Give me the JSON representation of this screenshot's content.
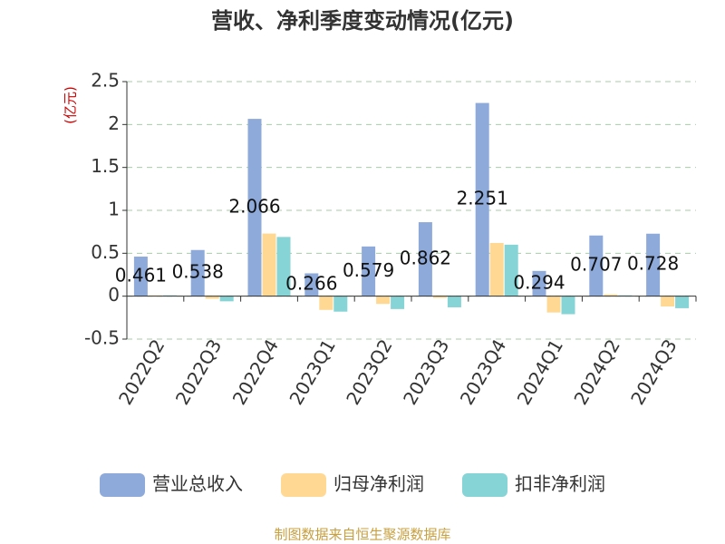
{
  "chart_data": {
    "type": "bar",
    "title": "营收、净利季度变动情况(亿元)",
    "y_label": "(亿元)",
    "source": "制图数据来自恒生聚源数据库",
    "categories": [
      "2022Q2",
      "2022Q3",
      "2022Q4",
      "2023Q1",
      "2023Q2",
      "2023Q3",
      "2023Q4",
      "2024Q1",
      "2024Q2",
      "2024Q3"
    ],
    "series": [
      {
        "name": "营业总收入",
        "color": "#8eaadb",
        "values": [
          0.461,
          0.538,
          2.066,
          0.266,
          0.579,
          0.862,
          2.251,
          0.294,
          0.707,
          0.728
        ]
      },
      {
        "name": "归母净利润",
        "color": "#ffd993",
        "values": [
          0.01,
          -0.03,
          0.73,
          -0.16,
          -0.09,
          -0.02,
          0.62,
          -0.19,
          0.02,
          -0.12
        ]
      },
      {
        "name": "扣非净利润",
        "color": "#86d4d6",
        "values": [
          0.01,
          -0.06,
          0.69,
          -0.18,
          -0.15,
          -0.13,
          0.6,
          -0.21,
          0.01,
          -0.14
        ]
      }
    ],
    "labeled_series": 0,
    "ylim": [
      -0.5,
      2.5
    ],
    "yticks": [
      -0.5,
      0,
      0.5,
      1,
      1.5,
      2,
      2.5
    ],
    "grid": true
  }
}
